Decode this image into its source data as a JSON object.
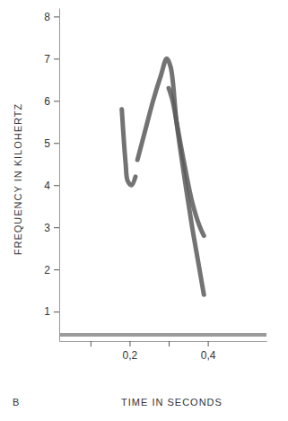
{
  "chart_data": {
    "type": "line",
    "panel_label": "B",
    "x_label": "TIME IN SECONDS",
    "y_label": "FREQUENCY IN KILOHERTZ",
    "xlim": [
      0.02,
      0.55
    ],
    "ylim": [
      0.3,
      8.2
    ],
    "xticks": [
      {
        "value": 0.1,
        "label": null
      },
      {
        "value": 0.2,
        "label": "0,2"
      },
      {
        "value": 0.3,
        "label": null
      },
      {
        "value": 0.4,
        "label": "0,4"
      }
    ],
    "yticks": [
      1,
      2,
      3,
      4,
      5,
      6,
      7,
      8
    ],
    "color": "#5a5a5a",
    "grid": false,
    "series": [
      {
        "color": "#5a5a5a",
        "x": [
          0.18,
          0.185,
          0.19,
          0.195,
          0.205,
          0.215
        ],
        "values": [
          5.8,
          5.1,
          4.5,
          4.1,
          4.0,
          4.2
        ]
      },
      {
        "color": "#5a5a5a",
        "x": [
          0.22,
          0.24,
          0.26,
          0.28,
          0.295,
          0.305,
          0.32,
          0.34,
          0.36,
          0.375,
          0.39
        ],
        "values": [
          4.6,
          5.3,
          6.0,
          6.6,
          7.0,
          6.8,
          5.5,
          4.2,
          3.0,
          2.2,
          1.4
        ]
      },
      {
        "color": "#5a5a5a",
        "x": [
          0.3,
          0.31,
          0.32,
          0.34,
          0.36,
          0.38,
          0.39
        ],
        "values": [
          6.3,
          6.0,
          5.5,
          4.5,
          3.6,
          3.0,
          2.8
        ]
      },
      {
        "color": "#8a8a8a",
        "x": [
          0.02,
          0.55
        ],
        "values": [
          0.45,
          0.45
        ]
      }
    ]
  }
}
